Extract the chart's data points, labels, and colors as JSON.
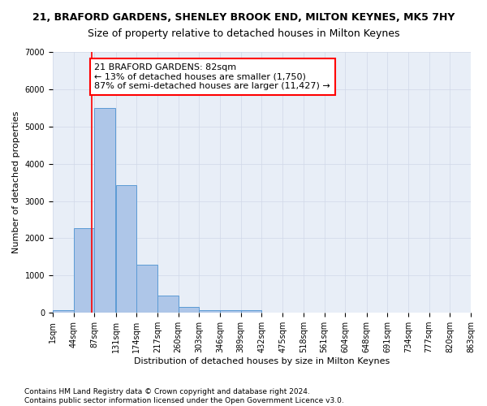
{
  "title": "21, BRAFORD GARDENS, SHENLEY BROOK END, MILTON KEYNES, MK5 7HY",
  "subtitle": "Size of property relative to detached houses in Milton Keynes",
  "xlabel": "Distribution of detached houses by size in Milton Keynes",
  "ylabel": "Number of detached properties",
  "bar_color": "#aec6e8",
  "bar_edge_color": "#5b9bd5",
  "grid_color": "#d0d8e8",
  "background_color": "#e8eef7",
  "property_line_x": 82,
  "property_line_color": "red",
  "annotation_text": "21 BRAFORD GARDENS: 82sqm\n← 13% of detached houses are smaller (1,750)\n87% of semi-detached houses are larger (11,427) →",
  "annotation_box_color": "white",
  "annotation_box_edge": "red",
  "bin_edges": [
    1,
    44,
    87,
    131,
    174,
    217,
    260,
    303,
    346,
    389,
    432,
    475,
    518,
    561,
    604,
    648,
    691,
    734,
    777,
    820,
    863
  ],
  "bin_counts": [
    75,
    2270,
    5490,
    3430,
    1290,
    470,
    155,
    80,
    75,
    75,
    0,
    0,
    0,
    0,
    0,
    0,
    0,
    0,
    0,
    0
  ],
  "tick_labels": [
    "1sqm",
    "44sqm",
    "87sqm",
    "131sqm",
    "174sqm",
    "217sqm",
    "260sqm",
    "303sqm",
    "346sqm",
    "389sqm",
    "432sqm",
    "475sqm",
    "518sqm",
    "561sqm",
    "604sqm",
    "648sqm",
    "691sqm",
    "734sqm",
    "777sqm",
    "820sqm",
    "863sqm"
  ],
  "ylim": [
    0,
    7000
  ],
  "yticks": [
    0,
    1000,
    2000,
    3000,
    4000,
    5000,
    6000,
    7000
  ],
  "footer_text": "Contains HM Land Registry data © Crown copyright and database right 2024.\nContains public sector information licensed under the Open Government Licence v3.0.",
  "title_fontsize": 9,
  "subtitle_fontsize": 9,
  "axis_label_fontsize": 8,
  "tick_fontsize": 7,
  "annotation_fontsize": 8,
  "footer_fontsize": 6.5
}
